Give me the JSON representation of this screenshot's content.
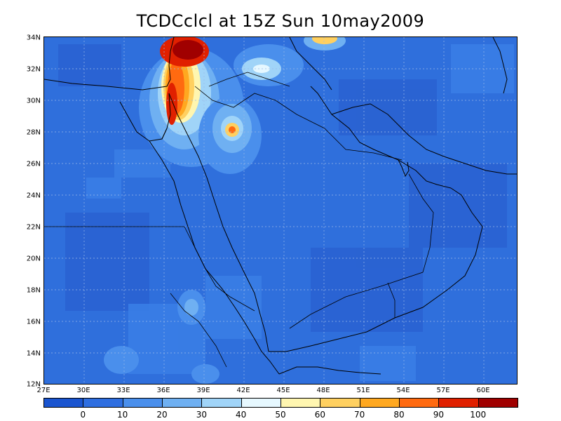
{
  "title": "TCDCclcl at 15Z Sun 10may2009",
  "map": {
    "y_axis_labels": [
      "34N",
      "32N",
      "30N",
      "28N",
      "26N",
      "24N",
      "22N",
      "20N",
      "18N",
      "16N",
      "14N",
      "12N"
    ],
    "x_axis_labels": [
      "27E",
      "30E",
      "33E",
      "36E",
      "39E",
      "42E",
      "45E",
      "48E",
      "51E",
      "54E",
      "57E",
      "60E"
    ],
    "lat_range": [
      12,
      34
    ],
    "lon_range": [
      27,
      62.5
    ]
  },
  "colorbar": {
    "labels": [
      "0",
      "10",
      "20",
      "30",
      "40",
      "50",
      "60",
      "70",
      "80",
      "90",
      "100"
    ],
    "colors": [
      "#1a55d0",
      "#2e6ee0",
      "#4a8fec",
      "#6fb0f2",
      "#a0d4f8",
      "#e6f8ff",
      "#fff6b0",
      "#ffd060",
      "#ffa820",
      "#ff6a10",
      "#e02000",
      "#a00000"
    ]
  }
}
